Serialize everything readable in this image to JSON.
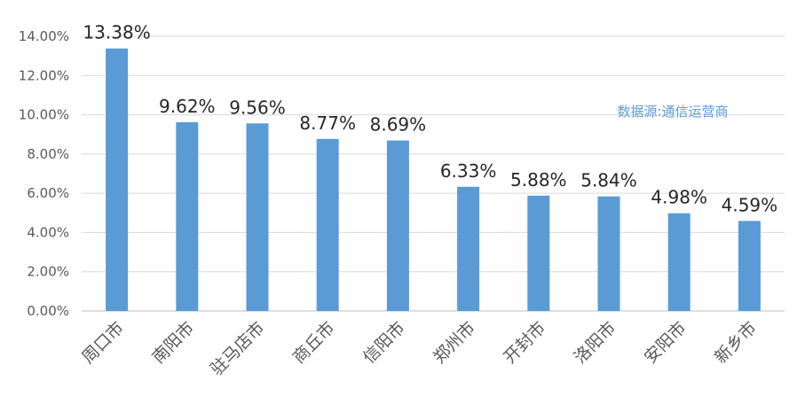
{
  "chart_data": {
    "type": "bar",
    "categories": [
      "周口市",
      "南阳市",
      "驻马店市",
      "商丘市",
      "信阳市",
      "郑州市",
      "开封市",
      "洛阳市",
      "安阳市",
      "新乡市"
    ],
    "values": [
      13.38,
      9.62,
      9.56,
      8.77,
      8.69,
      6.33,
      5.88,
      5.84,
      4.98,
      4.59
    ],
    "value_labels": [
      "13.38%",
      "9.62%",
      "9.56%",
      "8.77%",
      "8.69%",
      "6.33%",
      "5.88%",
      "5.84%",
      "4.98%",
      "4.59%"
    ],
    "y_ticks": [
      "0.00%",
      "2.00%",
      "4.00%",
      "6.00%",
      "8.00%",
      "10.00%",
      "12.00%",
      "14.00%"
    ],
    "ylim": [
      0,
      14
    ],
    "grid": true,
    "title": "",
    "xlabel": "",
    "ylabel": "",
    "annotation": "数据源:通信运营商",
    "colors": {
      "bar": "#5b9bd5",
      "annotation": "#5b9bd5",
      "grid": "#d9d9d9"
    }
  }
}
